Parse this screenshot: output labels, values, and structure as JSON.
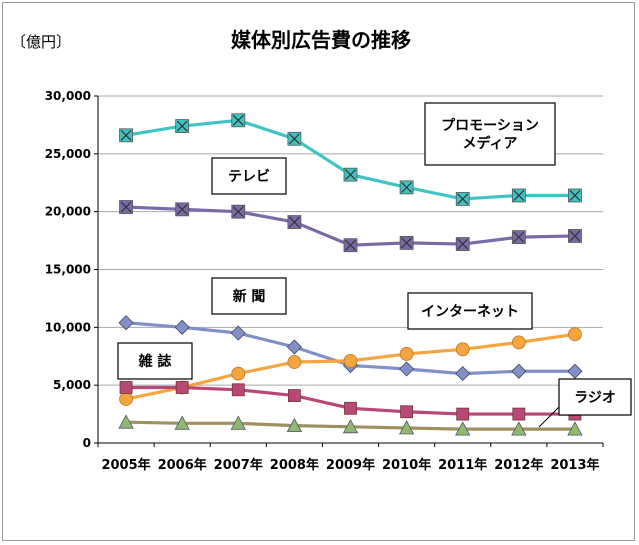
{
  "chart_data": {
    "type": "line",
    "title": "媒体別広告費の推移",
    "unit_label": "〔億円〕",
    "x": [
      "2005年",
      "2006年",
      "2007年",
      "2008年",
      "2009年",
      "2010年",
      "2011年",
      "2012年",
      "2013年"
    ],
    "ylim": [
      0,
      30000
    ],
    "yticks": [
      "0",
      "5,000",
      "10,000",
      "15,000",
      "20,000",
      "25,000",
      "30,000"
    ],
    "grid": true,
    "series": [
      {
        "name": "プロモーションメディア",
        "label_lines": [
          "プロモーション",
          "メディア"
        ],
        "color": "#3fc3c3",
        "marker": "x-square",
        "values": [
          26600,
          27400,
          27900,
          26300,
          23200,
          22100,
          21100,
          21400,
          21400
        ]
      },
      {
        "name": "テレビ",
        "label_lines": [
          "テレビ"
        ],
        "color": "#7a6aa8",
        "marker": "x-square",
        "values": [
          20400,
          20200,
          20000,
          19100,
          17100,
          17300,
          17200,
          17800,
          17900
        ]
      },
      {
        "name": "新聞",
        "label_lines": [
          "新 聞"
        ],
        "color": "#8090c8",
        "marker": "diamond",
        "values": [
          10400,
          10000,
          9500,
          8300,
          6700,
          6400,
          6000,
          6200,
          6200
        ]
      },
      {
        "name": "インターネット",
        "label_lines": [
          "インターネット"
        ],
        "color": "#f5a540",
        "marker": "circle",
        "values": [
          3800,
          4800,
          6000,
          7000,
          7100,
          7700,
          8100,
          8700,
          9400
        ]
      },
      {
        "name": "雑誌",
        "label_lines": [
          "雑 誌"
        ],
        "color": "#b84878",
        "marker": "square",
        "values": [
          4800,
          4800,
          4600,
          4100,
          3000,
          2700,
          2500,
          2500,
          2500
        ]
      },
      {
        "name": "ラジオ",
        "label_lines": [
          "ラジオ"
        ],
        "color": "#a09060",
        "marker": "triangle",
        "values": [
          1800,
          1700,
          1700,
          1500,
          1400,
          1300,
          1200,
          1200,
          1200
        ]
      }
    ]
  }
}
